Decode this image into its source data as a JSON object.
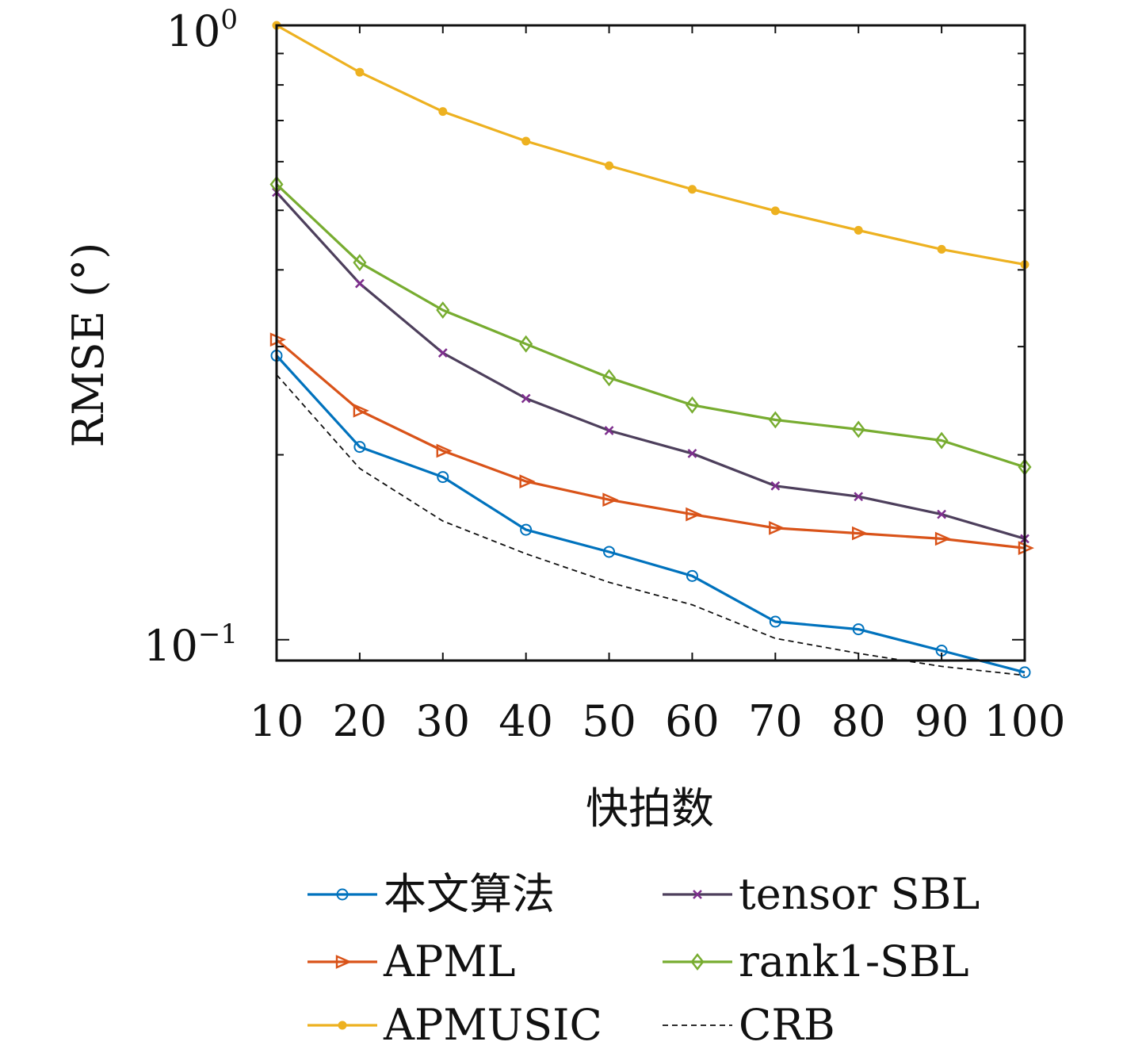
{
  "chart_data": {
    "type": "line",
    "xlabel": "快拍数",
    "ylabel": "RMSE (°)",
    "yscale": "log",
    "xlim": [
      10,
      100
    ],
    "ylim": [
      0.0925,
      1.0
    ],
    "x": [
      10,
      20,
      30,
      40,
      50,
      60,
      70,
      80,
      90,
      100
    ],
    "x_tick_labels": [
      "10",
      "20",
      "30",
      "40",
      "50",
      "60",
      "70",
      "80",
      "90",
      "100"
    ],
    "y_tick_labels": [
      {
        "base": "10",
        "exp": "0"
      },
      {
        "base": "10",
        "exp": "−1"
      }
    ],
    "grid": false,
    "legend_position": "bottom",
    "series": [
      {
        "name": "本文算法",
        "color": "#0072BD",
        "marker": "circle",
        "values": [
          0.29,
          0.206,
          0.184,
          0.151,
          0.139,
          0.127,
          0.107,
          0.104,
          0.096,
          0.0885
        ]
      },
      {
        "name": "tensor SBL",
        "color": "#4D3F5C",
        "marker": "x",
        "values": [
          0.535,
          0.38,
          0.293,
          0.247,
          0.219,
          0.201,
          0.178,
          0.171,
          0.16,
          0.146
        ]
      },
      {
        "name": "APML",
        "color": "#D95319",
        "marker": "triangle-right",
        "values": [
          0.308,
          0.236,
          0.203,
          0.181,
          0.169,
          0.16,
          0.152,
          0.149,
          0.146,
          0.141
        ]
      },
      {
        "name": "rank1-SBL",
        "color": "#77AC30",
        "marker": "diamond",
        "values": [
          0.551,
          0.411,
          0.344,
          0.303,
          0.267,
          0.241,
          0.228,
          0.22,
          0.211,
          0.191
        ]
      },
      {
        "name": "APMUSIC",
        "color": "#EDB120",
        "marker": "dot",
        "values": [
          1.0,
          0.839,
          0.724,
          0.648,
          0.591,
          0.541,
          0.499,
          0.464,
          0.432,
          0.408
        ]
      },
      {
        "name": "CRB",
        "color": "#111111",
        "marker": "none",
        "dashed": true,
        "values": [
          0.27,
          0.19,
          0.156,
          0.138,
          0.124,
          0.114,
          0.1005,
          0.095,
          0.0905,
          0.0875
        ]
      }
    ]
  }
}
